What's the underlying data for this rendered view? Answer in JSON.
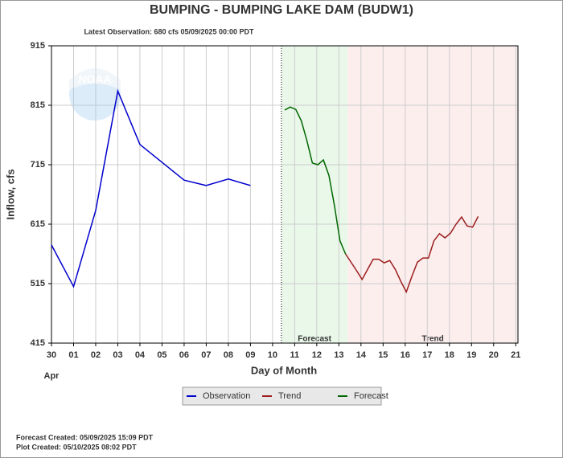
{
  "chart_data": {
    "type": "line",
    "title": "BUMPING - BUMPING LAKE DAM  (BUDW1)",
    "subtitle": "Latest Observation: 680 cfs 05/09/2025 00:00 PDT",
    "y_label": "Inflow, cfs",
    "x_label": "Day of Month",
    "x_sublabel": "Apr",
    "logo_text": "NOAA",
    "footer": [
      "Forecast Created: 05/09/2025 15:09 PDT",
      "Plot Created: 05/10/2025 08:02 PDT"
    ],
    "xlim": [
      0,
      21.1
    ],
    "ylim": [
      415,
      915
    ],
    "yticks": [
      415,
      515,
      615,
      715,
      815,
      915
    ],
    "xticks": [
      {
        "value": 0,
        "label": "30"
      },
      {
        "value": 1,
        "label": "01"
      },
      {
        "value": 2,
        "label": "02"
      },
      {
        "value": 3,
        "label": "03"
      },
      {
        "value": 4,
        "label": "04"
      },
      {
        "value": 5,
        "label": "05"
      },
      {
        "value": 6,
        "label": "06"
      },
      {
        "value": 7,
        "label": "07"
      },
      {
        "value": 8,
        "label": "08"
      },
      {
        "value": 9,
        "label": "09"
      },
      10,
      11,
      12,
      13,
      14,
      15,
      16,
      17,
      18,
      19,
      20,
      21
    ],
    "grid": true,
    "regions": [
      {
        "label": "Forecast",
        "start": 10.4,
        "end": 13.4,
        "color": "#eaf8ea"
      },
      {
        "label": "Trend",
        "start": 13.4,
        "end": 21.1,
        "color": "#fdeeee"
      }
    ],
    "series": [
      {
        "name": "Observation",
        "color": "#0000cc",
        "x": [
          0,
          1,
          2,
          3,
          4,
          6,
          7,
          8,
          9
        ],
        "values": [
          580,
          510,
          638,
          839,
          749,
          689,
          680,
          691,
          680
        ]
      },
      {
        "name": "Trend",
        "color": "#9b1c1c",
        "x": [
          13.3,
          13.55,
          13.8,
          14.05,
          14.3,
          14.55,
          14.8,
          15.05,
          15.3,
          15.55,
          15.8,
          16.05,
          16.3,
          16.55,
          16.8,
          17.05,
          17.3,
          17.55,
          17.8,
          18.05,
          18.3,
          18.55,
          18.8,
          19.05,
          19.3
        ],
        "values": [
          565,
          551,
          537,
          522,
          539,
          556,
          556,
          550,
          554,
          539,
          519,
          501,
          527,
          551,
          558,
          558,
          587,
          599,
          592,
          600,
          615,
          627,
          612,
          610,
          628
        ]
      },
      {
        "name": "Forecast",
        "color": "#006600",
        "x": [
          10.55,
          10.8,
          11.05,
          11.3,
          11.55,
          11.8,
          12.05,
          12.3,
          12.55,
          12.8,
          13.05,
          13.3
        ],
        "values": [
          807,
          812,
          808,
          789,
          756,
          718,
          715,
          723,
          697,
          646,
          587,
          565
        ]
      }
    ]
  }
}
